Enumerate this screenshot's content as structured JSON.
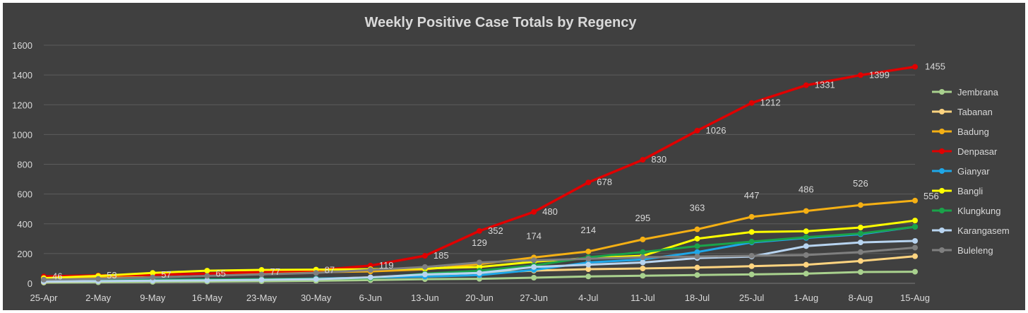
{
  "chart_data": {
    "type": "line",
    "title": "Weekly Positive Case Totals by Regency",
    "xlabel": "",
    "ylabel": "",
    "categories": [
      "25-Apr",
      "2-May",
      "9-May",
      "16-May",
      "23-May",
      "30-May",
      "6-Jun",
      "13-Jun",
      "20-Jun",
      "27-Jun",
      "4-Jul",
      "11-Jul",
      "18-Jul",
      "25-Jul",
      "1-Aug",
      "8-Aug",
      "15-Aug"
    ],
    "yticks": [
      0,
      200,
      400,
      600,
      800,
      1000,
      1200,
      1400,
      1600
    ],
    "ylim": [
      0,
      1600
    ],
    "grid": true,
    "legend_position": "right",
    "background_color": "#404040",
    "text_color": "#d9d9d9",
    "series": [
      {
        "name": "Jembrana",
        "color": "#a9d18e",
        "values": [
          5,
          7,
          10,
          12,
          14,
          17,
          22,
          28,
          30,
          38,
          46,
          51,
          56,
          60,
          65,
          76,
          78
        ],
        "labels": []
      },
      {
        "name": "Tabanan",
        "color": "#ffd480",
        "values": [
          10,
          15,
          20,
          24,
          26,
          30,
          40,
          55,
          70,
          85,
          95,
          100,
          106,
          115,
          125,
          150,
          182
        ],
        "labels": []
      },
      {
        "name": "Badung",
        "color": "#f5b014",
        "values": [
          30,
          40,
          55,
          65,
          70,
          75,
          80,
          94,
          129,
          174,
          214,
          295,
          363,
          447,
          486,
          526,
          556
        ],
        "labels": [
          null,
          null,
          null,
          null,
          null,
          null,
          null,
          null,
          "129",
          "174",
          "214",
          "295",
          "363",
          "447",
          "486",
          "526",
          "556"
        ]
      },
      {
        "name": "Denpasar",
        "color": "#e00000",
        "values": [
          46,
          53,
          57,
          65,
          77,
          87,
          119,
          185,
          352,
          480,
          678,
          830,
          1026,
          1212,
          1331,
          1399,
          1455
        ],
        "labels": [
          "46",
          "53",
          "57",
          "65",
          "77",
          "87",
          "119",
          "185",
          "352",
          "480",
          "678",
          "830",
          "1026",
          "1212",
          "1331",
          "1399",
          "1455"
        ]
      },
      {
        "name": "Gianyar",
        "color": "#1ea7e8",
        "values": [
          20,
          22,
          24,
          26,
          28,
          32,
          38,
          45,
          55,
          90,
          140,
          160,
          210,
          275,
          305,
          330,
          380
        ],
        "labels": []
      },
      {
        "name": "Bangli",
        "color": "#ffff00",
        "values": [
          35,
          50,
          70,
          85,
          90,
          92,
          95,
          100,
          110,
          145,
          170,
          185,
          300,
          345,
          350,
          375,
          422
        ],
        "labels": []
      },
      {
        "name": "Klungkung",
        "color": "#1aa34a",
        "values": [
          15,
          18,
          22,
          25,
          28,
          30,
          35,
          65,
          85,
          120,
          175,
          210,
          250,
          280,
          310,
          335,
          380
        ],
        "labels": []
      },
      {
        "name": "Karangasem",
        "color": "#b8d4f0",
        "values": [
          12,
          15,
          18,
          20,
          24,
          28,
          40,
          60,
          70,
          110,
          125,
          140,
          170,
          180,
          250,
          275,
          285
        ],
        "labels": []
      },
      {
        "name": "Buleleng",
        "color": "#7f7f7f",
        "values": [
          25,
          30,
          40,
          50,
          60,
          70,
          90,
          110,
          140,
          155,
          165,
          175,
          180,
          185,
          190,
          210,
          240
        ],
        "labels": []
      }
    ]
  }
}
